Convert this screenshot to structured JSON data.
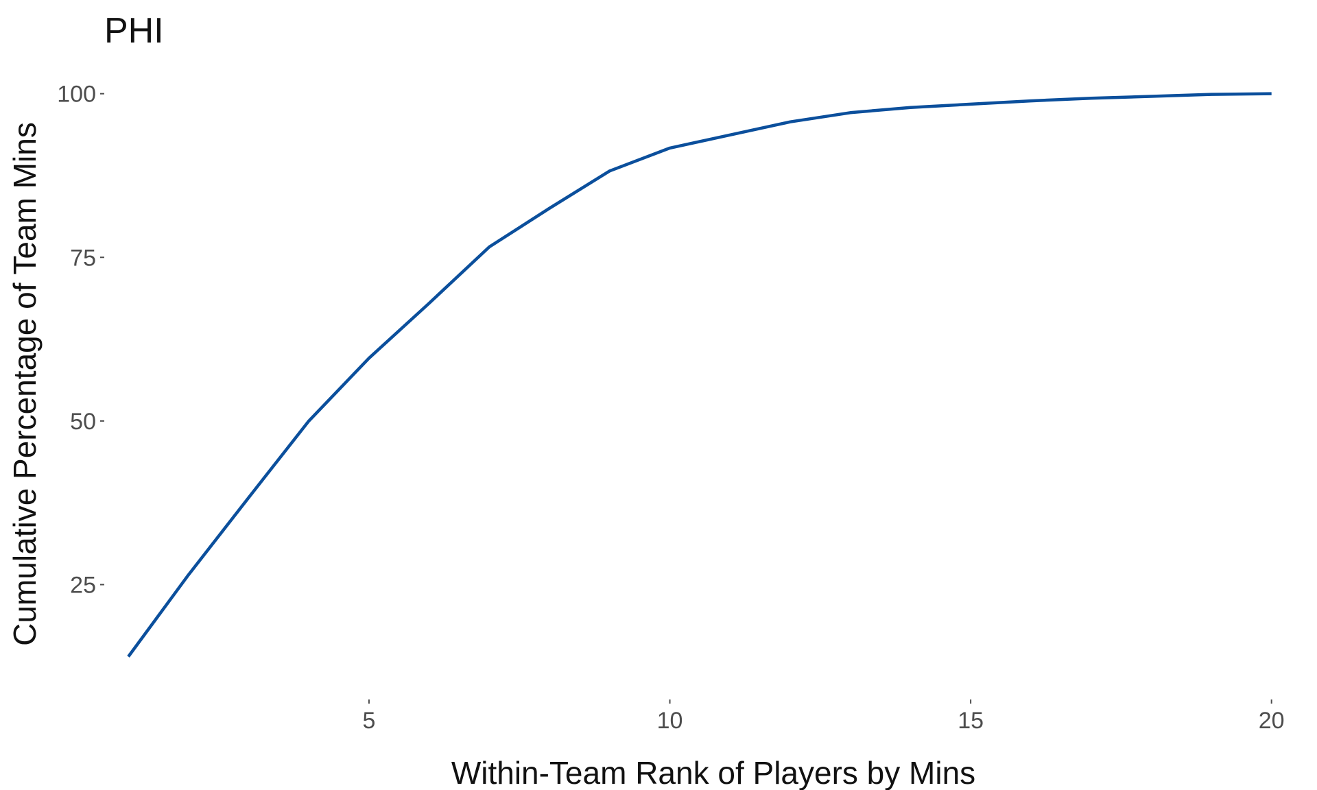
{
  "chart_data": {
    "type": "line",
    "title": "PHI",
    "xlabel": "Within-Team Rank of Players by Mins",
    "ylabel": "Cumulative Percentage of Team Mins",
    "xlim": [
      0.6,
      20.3
    ],
    "ylim": [
      8.5,
      103
    ],
    "x_ticks": [
      5,
      10,
      15,
      20
    ],
    "y_ticks": [
      25,
      50,
      75,
      100
    ],
    "x_tick_labels": [
      "5",
      "10",
      "15",
      "20"
    ],
    "y_tick_labels": [
      "25",
      "50",
      "75",
      "100"
    ],
    "grid": false,
    "series": [
      {
        "color": "#0b4f9c",
        "x": [
          1,
          2,
          3,
          4,
          5,
          6,
          7,
          8,
          9,
          10,
          11,
          12,
          13,
          14,
          15,
          16,
          17,
          18,
          19,
          20
        ],
        "values": [
          14.0,
          26.5,
          38.3,
          50.0,
          59.6,
          68.0,
          76.6,
          82.5,
          88.2,
          91.7,
          93.7,
          95.7,
          97.1,
          97.9,
          98.4,
          98.9,
          99.3,
          99.6,
          99.9,
          100.0
        ]
      }
    ]
  }
}
